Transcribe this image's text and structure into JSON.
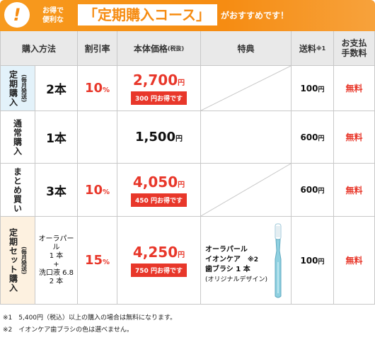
{
  "banner": {
    "small_line1": "お得で",
    "small_line2": "便利な",
    "bracket_open": "「",
    "title": "定期購入コース",
    "bracket_close": "」",
    "tail": "がおすすめです！",
    "icon": "exclamation-icon"
  },
  "headers": {
    "method": "購入方法",
    "discount": "割引率",
    "price": "本体価格",
    "price_note": "(税抜)",
    "bonus": "特典",
    "shipping": "送料",
    "shipping_mark": "※1",
    "fee_line1": "お支払",
    "fee_line2": "手数料"
  },
  "rows": [
    {
      "method": "定期購入",
      "method_sub": "(毎月発送)",
      "qty": "2本",
      "rate": "10",
      "rate_unit": "%",
      "price": "2,700",
      "price_unit": "円",
      "savings": "300 円お得です",
      "ship": "100",
      "ship_unit": "円",
      "fee": "無料"
    },
    {
      "method": "通常購入",
      "qty": "1本",
      "price": "1,500",
      "price_unit": "円",
      "ship": "600",
      "ship_unit": "円",
      "fee": "無料"
    },
    {
      "method": "まとめ買い",
      "qty": "3本",
      "rate": "10",
      "rate_unit": "%",
      "price": "4,050",
      "price_unit": "円",
      "savings": "450 円お得です",
      "ship": "600",
      "ship_unit": "円",
      "fee": "無料"
    },
    {
      "method": "定期セット購入",
      "method_sub": "(毎月発送)",
      "mix_line1": "オーラパール",
      "mix_line2": "1 本",
      "mix_line3": "+",
      "mix_line4": "洗口液 6.8",
      "mix_line5": "2 本",
      "rate": "15",
      "rate_unit": "%",
      "price": "4,250",
      "price_unit": "円",
      "savings": "750 円お得です",
      "bonus_line1": "オーラパール",
      "bonus_line2": "イオンケア",
      "bonus_mark": "※2",
      "bonus_line3": "歯ブラシ 1 本",
      "bonus_line4": "(オリジナルデザイン)",
      "ship": "100",
      "ship_unit": "円",
      "fee": "無料"
    }
  ],
  "footnotes": {
    "note1": "※1　5,400円（税込）以上の購入の場合は無料になります。",
    "note2": "※2　イオンケア歯ブラシの色は選べません。"
  },
  "colors": {
    "accent": "#f68c12",
    "red": "#e8372a",
    "header_bg": "#e9e9e9",
    "subscription_bg": "#e3f2fa",
    "set_bg": "#fdf1e0"
  }
}
